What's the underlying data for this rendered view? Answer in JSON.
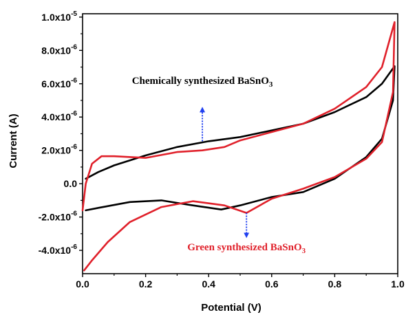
{
  "chart_data": {
    "type": "line",
    "title": "",
    "xlabel": "Potential (V)",
    "ylabel": "Current (A)",
    "xlim": [
      0.0,
      1.0
    ],
    "ylim": [
      -5.4e-06,
      1.02e-05
    ],
    "x_ticks": [
      {
        "value": 0.0,
        "label": "0.0"
      },
      {
        "value": 0.2,
        "label": "0.2"
      },
      {
        "value": 0.4,
        "label": "0.4"
      },
      {
        "value": 0.6,
        "label": "0.6"
      },
      {
        "value": 0.8,
        "label": "0.8"
      },
      {
        "value": 1.0,
        "label": "1.0"
      }
    ],
    "y_ticks": [
      {
        "value": -4e-06,
        "mant": "-4.0x10",
        "exp": "-6"
      },
      {
        "value": -2e-06,
        "mant": "-2.0x10",
        "exp": "-6"
      },
      {
        "value": 0,
        "mant": "0.0",
        "exp": ""
      },
      {
        "value": 2e-06,
        "mant": "2.0x10",
        "exp": "-6"
      },
      {
        "value": 4e-06,
        "mant": "4.0x10",
        "exp": "-6"
      },
      {
        "value": 6e-06,
        "mant": "6.0x10",
        "exp": "-6"
      },
      {
        "value": 8e-06,
        "mant": "8.0x10",
        "exp": "-6"
      },
      {
        "value": 1e-05,
        "mant": "1.0x10",
        "exp": "-5"
      }
    ],
    "grid": false,
    "legend": "none",
    "series": [
      {
        "name": "Chemically synthesized BaSnO3",
        "color": "#000000",
        "points": [
          [
            0.01,
            3e-07
          ],
          [
            0.05,
            7e-07
          ],
          [
            0.1,
            1.1e-06
          ],
          [
            0.2,
            1.7e-06
          ],
          [
            0.3,
            2.2e-06
          ],
          [
            0.4,
            2.55e-06
          ],
          [
            0.5,
            2.8e-06
          ],
          [
            0.6,
            3.2e-06
          ],
          [
            0.7,
            3.6e-06
          ],
          [
            0.8,
            4.3e-06
          ],
          [
            0.9,
            5.2e-06
          ],
          [
            0.95,
            6e-06
          ],
          [
            0.99,
            7.05e-06
          ],
          [
            0.985,
            5e-06
          ],
          [
            0.95,
            2.7e-06
          ],
          [
            0.9,
            1.6e-06
          ],
          [
            0.8,
            3e-07
          ],
          [
            0.7,
            -5e-07
          ],
          [
            0.6,
            -8e-07
          ],
          [
            0.5,
            -1.3e-06
          ],
          [
            0.44,
            -1.55e-06
          ],
          [
            0.35,
            -1.3e-06
          ],
          [
            0.25,
            -1e-06
          ],
          [
            0.15,
            -1.1e-06
          ],
          [
            0.05,
            -1.45e-06
          ],
          [
            0.01,
            -1.6e-06
          ]
        ]
      },
      {
        "name": "Green synthesized BaSnO3",
        "color": "#e0202a",
        "points": [
          [
            0.0,
            -1.6e-06
          ],
          [
            0.01,
            0.0
          ],
          [
            0.03,
            1.2e-06
          ],
          [
            0.06,
            1.65e-06
          ],
          [
            0.1,
            1.65e-06
          ],
          [
            0.2,
            1.55e-06
          ],
          [
            0.3,
            1.9e-06
          ],
          [
            0.38,
            2e-06
          ],
          [
            0.45,
            2.2e-06
          ],
          [
            0.5,
            2.6e-06
          ],
          [
            0.6,
            3.1e-06
          ],
          [
            0.7,
            3.6e-06
          ],
          [
            0.8,
            4.5e-06
          ],
          [
            0.9,
            5.8e-06
          ],
          [
            0.95,
            7e-06
          ],
          [
            0.99,
            9.7e-06
          ],
          [
            0.985,
            5.5e-06
          ],
          [
            0.95,
            2.5e-06
          ],
          [
            0.9,
            1.5e-06
          ],
          [
            0.8,
            4e-07
          ],
          [
            0.7,
            -3e-07
          ],
          [
            0.6,
            -9e-07
          ],
          [
            0.52,
            -1.75e-06
          ],
          [
            0.45,
            -1.3e-06
          ],
          [
            0.35,
            -1.05e-06
          ],
          [
            0.25,
            -1.4e-06
          ],
          [
            0.15,
            -2.3e-06
          ],
          [
            0.08,
            -3.5e-06
          ],
          [
            0.03,
            -4.6e-06
          ],
          [
            0.005,
            -5.2e-06
          ]
        ]
      }
    ],
    "annotations": [
      {
        "text": "Chemically synthesized BaSnO",
        "sub": "3",
        "color": "#000000",
        "x": 0.38,
        "y": 6e-06,
        "arrow_from": [
          0.38,
          2.55e-06
        ],
        "arrow_to": [
          0.38,
          4.45e-06
        ],
        "arrow_color": "#1f3ff0"
      },
      {
        "text": "Green synthesized BaSnO",
        "sub": "3",
        "color": "#e0202a",
        "x": 0.52,
        "y": -4e-06,
        "arrow_from": [
          0.52,
          -1.75e-06
        ],
        "arrow_to": [
          0.52,
          -3.1e-06
        ],
        "arrow_color": "#1f3ff0"
      }
    ]
  }
}
